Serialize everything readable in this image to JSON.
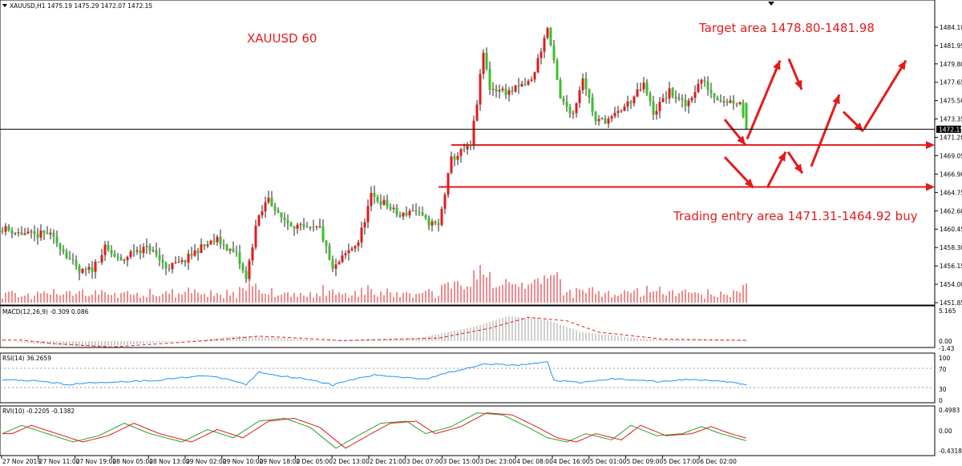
{
  "chart_data": {
    "type": "candlestick",
    "main": {
      "header": "XAUUSD,H1  1475.19 1475.29 1472.07 1472.15",
      "ylim": [
        1451.85,
        1485.5
      ],
      "yticks": [
        "1484.10",
        "1481.95",
        "1479.80",
        "1477.65",
        "1475.50",
        "1473.35",
        "1471.20",
        "1469.05",
        "1466.90",
        "1464.75",
        "1462.60",
        "1460.45",
        "1458.30",
        "1456.15",
        "1454.00",
        "1451.85"
      ],
      "current_price": "1472.15",
      "colors": {
        "up": "#e31a1c",
        "down": "#39c12a",
        "wick": "#222222",
        "volume": "#e31a1c"
      }
    },
    "annotations": {
      "title": "XAUUSD  60",
      "target": "Target area 1478.80-1481.98",
      "entry": "Trading entry area  1471.31-1464.92 buy"
    },
    "levels": [
      1470.3,
      1465.4
    ],
    "macd": {
      "label": "MACD(12,26,9) -0.309 0.086",
      "top": "5.165",
      "zero": "0.00",
      "bottom": "-1.43"
    },
    "rsi": {
      "label": "RSI(14) 36.2659",
      "ticks": [
        "100",
        "70",
        "30",
        "0"
      ]
    },
    "rvi": {
      "label": "RVI(10) -0.2205 -0.1382",
      "top": "0.4983",
      "zero": "0.00",
      "bottom": "-0.4318"
    },
    "time_labels": [
      "27 Nov 2019",
      "27 Nov 11:00",
      "27 Nov 19:00",
      "28 Nov 05:00",
      "28 Nov 13:00",
      "29 Nov 02:00",
      "29 Nov 10:00",
      "29 Nov 18:00",
      "2 Dec 05:00",
      "2 Dec 13:00",
      "2 Dec 21:00",
      "3 Dec 07:00",
      "3 Dec 15:00",
      "3 Dec 23:00",
      "4 Dec 08:00",
      "4 Dec 16:00",
      "5 Dec 01:00",
      "5 Dec 09:00",
      "5 Dec 17:00",
      "6 Dec 02:00"
    ],
    "close_keyframes": [
      [
        0,
        1460.6
      ],
      [
        5,
        1460.0
      ],
      [
        10,
        1459.7
      ],
      [
        14,
        1460.0
      ],
      [
        18,
        1458.5
      ],
      [
        24,
        1455.3
      ],
      [
        28,
        1455.8
      ],
      [
        32,
        1458.2
      ],
      [
        37,
        1456.6
      ],
      [
        41,
        1458.0
      ],
      [
        46,
        1458.2
      ],
      [
        51,
        1456.0
      ],
      [
        56,
        1456.5
      ],
      [
        61,
        1458.1
      ],
      [
        67,
        1459.2
      ],
      [
        73,
        1457.4
      ],
      [
        76,
        1454.5
      ],
      [
        79,
        1460.8
      ],
      [
        83,
        1464.3
      ],
      [
        86,
        1462.0
      ],
      [
        90,
        1461.1
      ],
      [
        95,
        1460.3
      ],
      [
        99,
        1460.6
      ],
      [
        103,
        1455.6
      ],
      [
        107,
        1457.5
      ],
      [
        111,
        1459.0
      ],
      [
        115,
        1464.3
      ],
      [
        119,
        1463.5
      ],
      [
        124,
        1461.9
      ],
      [
        128,
        1462.8
      ],
      [
        132,
        1461.4
      ],
      [
        136,
        1460.8
      ],
      [
        140,
        1468.6
      ],
      [
        146,
        1470.3
      ],
      [
        148,
        1475.3
      ],
      [
        150,
        1481.1
      ],
      [
        152,
        1477.0
      ],
      [
        158,
        1476.5
      ],
      [
        165,
        1477.8
      ],
      [
        170,
        1484.0
      ],
      [
        174,
        1475.6
      ],
      [
        178,
        1474.0
      ],
      [
        181,
        1478.4
      ],
      [
        185,
        1473.0
      ],
      [
        190,
        1473.4
      ],
      [
        196,
        1475.5
      ],
      [
        200,
        1477.3
      ],
      [
        203,
        1474.1
      ],
      [
        208,
        1476.5
      ],
      [
        213,
        1474.9
      ],
      [
        218,
        1478.0
      ],
      [
        222,
        1476.0
      ],
      [
        226,
        1475.5
      ],
      [
        230,
        1475.3
      ],
      [
        232,
        1472.15
      ]
    ],
    "macd_keyframes": [
      [
        0,
        0.2
      ],
      [
        10,
        -0.5
      ],
      [
        28,
        -1.2
      ],
      [
        60,
        0.2
      ],
      [
        74,
        1.0
      ],
      [
        84,
        0.7
      ],
      [
        100,
        0.1
      ],
      [
        130,
        0.6
      ],
      [
        146,
        2.6
      ],
      [
        158,
        4.8
      ],
      [
        170,
        4.1
      ],
      [
        180,
        1.8
      ],
      [
        200,
        0.4
      ],
      [
        232,
        0.1
      ]
    ],
    "rsi_keyframes": [
      [
        0,
        46
      ],
      [
        12,
        44
      ],
      [
        20,
        36
      ],
      [
        28,
        40
      ],
      [
        36,
        42
      ],
      [
        48,
        45
      ],
      [
        62,
        55
      ],
      [
        70,
        48
      ],
      [
        76,
        36
      ],
      [
        80,
        62
      ],
      [
        86,
        55
      ],
      [
        96,
        47
      ],
      [
        103,
        35
      ],
      [
        108,
        45
      ],
      [
        116,
        56
      ],
      [
        122,
        53
      ],
      [
        132,
        48
      ],
      [
        140,
        63
      ],
      [
        146,
        72
      ],
      [
        150,
        80
      ],
      [
        160,
        76
      ],
      [
        170,
        83
      ],
      [
        172,
        45
      ],
      [
        180,
        40
      ],
      [
        190,
        48
      ],
      [
        198,
        46
      ],
      [
        204,
        42
      ],
      [
        214,
        47
      ],
      [
        222,
        45
      ],
      [
        232,
        36
      ]
    ],
    "rvi_keyframes": [
      [
        0,
        -0.05
      ],
      [
        6,
        0.15
      ],
      [
        14,
        -0.05
      ],
      [
        22,
        -0.25
      ],
      [
        30,
        -0.1
      ],
      [
        38,
        0.2
      ],
      [
        46,
        -0.05
      ],
      [
        56,
        -0.25
      ],
      [
        64,
        0.05
      ],
      [
        72,
        -0.15
      ],
      [
        80,
        0.25
      ],
      [
        88,
        0.32
      ],
      [
        96,
        0.1
      ],
      [
        104,
        -0.4
      ],
      [
        112,
        -0.05
      ],
      [
        118,
        0.2
      ],
      [
        126,
        0.25
      ],
      [
        132,
        -0.05
      ],
      [
        140,
        0.12
      ],
      [
        148,
        0.45
      ],
      [
        156,
        0.4
      ],
      [
        164,
        0.1
      ],
      [
        170,
        -0.15
      ],
      [
        176,
        -0.25
      ],
      [
        182,
        -0.05
      ],
      [
        190,
        -0.2
      ],
      [
        196,
        0.15
      ],
      [
        204,
        -0.1
      ],
      [
        212,
        -0.05
      ],
      [
        218,
        0.12
      ],
      [
        224,
        -0.05
      ],
      [
        232,
        -0.22
      ]
    ]
  }
}
